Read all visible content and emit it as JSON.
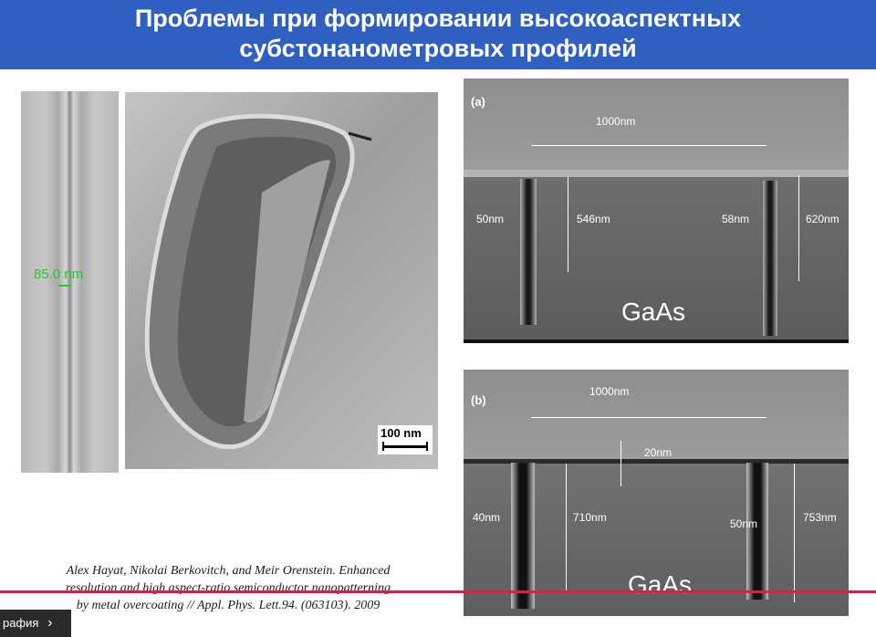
{
  "slide": {
    "title_line1": "Проблемы при формировании высокоаспектных",
    "title_line2": "субстонанометровых профилей"
  },
  "left_images": {
    "strip_measurement": "85.0 nm",
    "scalebar_label": "100 nm"
  },
  "panel_a": {
    "label": "(a)",
    "width_label": "1000nm",
    "left_gap": "50nm",
    "left_depth": "546nm",
    "right_gap": "58nm",
    "right_depth": "620nm",
    "material": "GaAs"
  },
  "panel_b": {
    "label": "(b)",
    "width_label": "1000nm",
    "layer": "20nm",
    "left_gap": "40nm",
    "left_depth": "710nm",
    "right_gap": "50nm",
    "right_depth": "753nm",
    "material": "GaAs"
  },
  "citation": {
    "line1": "Alex Hayat, Nikolai Berkovitch, and Meir Orenstein.  Enhanced",
    "line2": "resolution and high aspect-ratio semiconductor nanopatterning",
    "line3": "by metal overcoating // Appl. Phys. Lett.94. (063103). 2009"
  },
  "bottom_bar": {
    "label": "рафия",
    "chevron": "›"
  },
  "colors": {
    "title_bg": "#2f5fc0",
    "measure_green": "#22cc22",
    "overlay_line": "#e0194e"
  }
}
